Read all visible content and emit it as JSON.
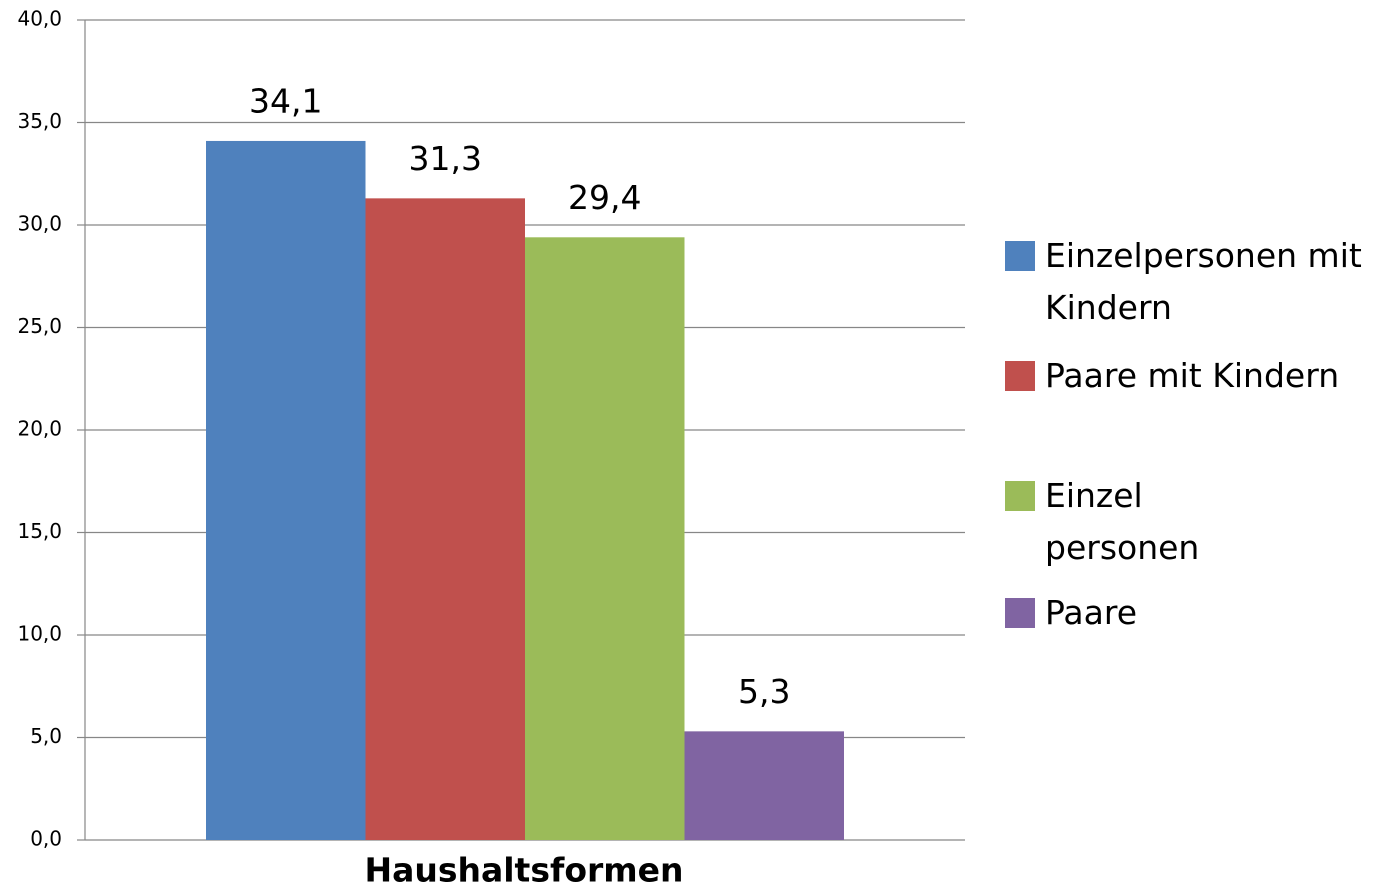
{
  "chart_data": {
    "type": "bar",
    "x_label": "Haushaltsformen",
    "categories": [
      "Haushaltsformen"
    ],
    "series": [
      {
        "name": "Einzelpersonen mit Kindern",
        "color": "#4f81bd",
        "values": [
          34.1
        ],
        "value_labels": [
          "34,1"
        ]
      },
      {
        "name": "Paare mit Kindern",
        "color": "#c0504d",
        "values": [
          31.3
        ],
        "value_labels": [
          "31,3"
        ]
      },
      {
        "name": "Einzel\npersonen",
        "color": "#9bbb59",
        "values": [
          29.4
        ],
        "value_labels": [
          "29,4"
        ]
      },
      {
        "name": "Paare",
        "color": "#8064a2",
        "values": [
          5.3
        ],
        "value_labels": [
          "5,3"
        ]
      }
    ],
    "ylim": [
      0,
      40
    ],
    "yticks": [
      {
        "value": 0,
        "label": "0,0"
      },
      {
        "value": 5,
        "label": "5,0"
      },
      {
        "value": 10,
        "label": "10,0"
      },
      {
        "value": 15,
        "label": "15,0"
      },
      {
        "value": 20,
        "label": "20,0"
      },
      {
        "value": 25,
        "label": "25,0"
      },
      {
        "value": 30,
        "label": "30,0"
      },
      {
        "value": 35,
        "label": "35,0"
      },
      {
        "value": 40,
        "label": "40,0"
      }
    ],
    "grid": true,
    "legend": "right"
  }
}
